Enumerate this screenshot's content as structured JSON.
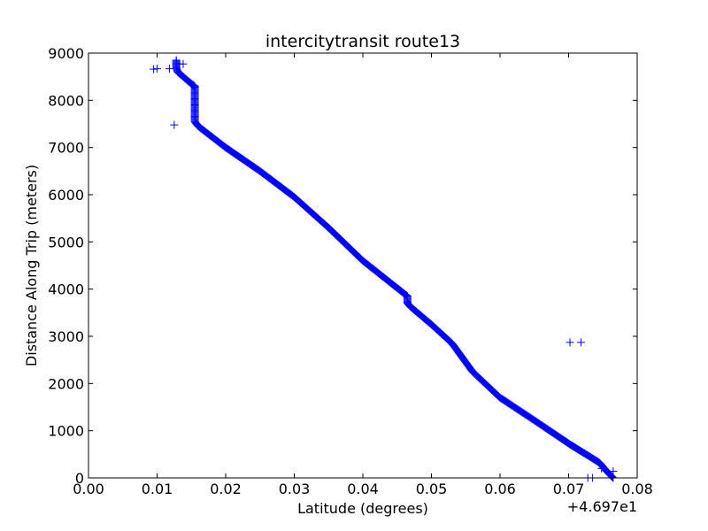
{
  "chart_data": {
    "type": "scatter",
    "title": "intercitytransit route13",
    "xlabel": "Latitude (degrees)",
    "ylabel": "Distance Along Trip (meters)",
    "x_offset_label": "+4.697e1",
    "xlim": [
      0.0,
      0.08
    ],
    "ylim": [
      0,
      9000
    ],
    "x_ticks": [
      0.0,
      0.01,
      0.02,
      0.03,
      0.04,
      0.05,
      0.06,
      0.07,
      0.08
    ],
    "x_tick_labels": [
      "0.00",
      "0.01",
      "0.02",
      "0.03",
      "0.04",
      "0.05",
      "0.06",
      "0.07",
      "0.08"
    ],
    "y_ticks": [
      0,
      1000,
      2000,
      3000,
      4000,
      5000,
      6000,
      7000,
      8000,
      9000
    ],
    "y_tick_labels": [
      "0",
      "1000",
      "2000",
      "3000",
      "4000",
      "5000",
      "6000",
      "7000",
      "8000",
      "9000"
    ],
    "grid": false,
    "marker": "+",
    "marker_color": "#0000ff",
    "series": [
      {
        "main_path": [
          [
            0.0765,
            0
          ],
          [
            0.0755,
            150
          ],
          [
            0.0745,
            320
          ],
          [
            0.07,
            730
          ],
          [
            0.065,
            1220
          ],
          [
            0.06,
            1700
          ],
          [
            0.056,
            2250
          ],
          [
            0.053,
            2850
          ],
          [
            0.05,
            3250
          ],
          [
            0.047,
            3620
          ],
          [
            0.0465,
            3700
          ],
          [
            0.0465,
            3850
          ],
          [
            0.04,
            4600
          ],
          [
            0.035,
            5300
          ],
          [
            0.03,
            5950
          ],
          [
            0.025,
            6500
          ],
          [
            0.02,
            7000
          ],
          [
            0.016,
            7450
          ],
          [
            0.0155,
            7550
          ],
          [
            0.0155,
            8300
          ],
          [
            0.015,
            8350
          ],
          [
            0.013,
            8600
          ],
          [
            0.0128,
            8700
          ],
          [
            0.0128,
            8850
          ]
        ],
        "outliers": [
          [
            0.0095,
            8660
          ],
          [
            0.01,
            8670
          ],
          [
            0.0118,
            8670
          ],
          [
            0.0132,
            8770
          ],
          [
            0.0138,
            8770
          ],
          [
            0.0125,
            7480
          ],
          [
            0.0702,
            2870
          ],
          [
            0.0718,
            2870
          ],
          [
            0.0728,
            0
          ],
          [
            0.0735,
            0
          ],
          [
            0.0748,
            200
          ],
          [
            0.0765,
            140
          ]
        ]
      }
    ]
  }
}
